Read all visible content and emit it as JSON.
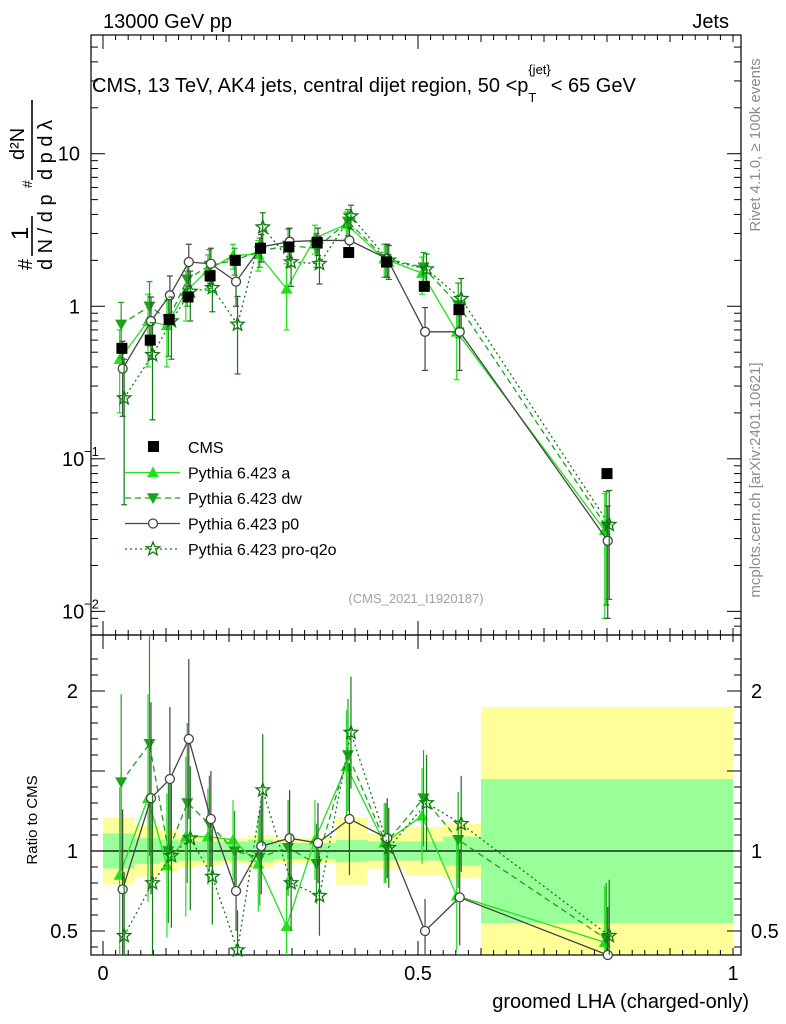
{
  "header": {
    "energy_label": "13000 GeV pp",
    "category_label": "Jets"
  },
  "side_labels": {
    "rivet": "Rivet 4.1.0, ≥ 100k events",
    "mcplots": "mcplots.cern.ch [arXiv:2401.10621]"
  },
  "chart_data": {
    "type": "line",
    "title": "CMS, 13 TeV, AK4 jets, central dijet region, 50 <p_T^{jet}< 65 GeV",
    "title_parts": {
      "main": "CMS, 13 TeV, AK4 jets, central dijet region, 50 <p",
      "sub": "T",
      "sup": "{jet}",
      "tail": "< 65 GeV"
    },
    "watermark": "(CMS_2021_I1920187)",
    "xlabel": "groomed LHA (charged-only)",
    "ylabel_top": "1/dN/dp_T · d²N/dp_T dλ",
    "ylabel_ratio": "Ratio to CMS",
    "xlim": [
      0,
      1
    ],
    "ylim_top": [
      0.007,
      60
    ],
    "ylim_ratio": [
      0.35,
      2.35
    ],
    "x_ticks": [
      "0",
      "0.5",
      "1"
    ],
    "y_ticks_top": [
      {
        "value": 10,
        "label": "10"
      },
      {
        "value": 1,
        "label": "1"
      },
      {
        "value": 0.1,
        "label": "10",
        "sup": "−1"
      },
      {
        "value": 0.01,
        "label": "10",
        "sup": "−2"
      }
    ],
    "y_ticks_ratio": [
      "0.5",
      "1",
      "2"
    ],
    "x": [
      0.03,
      0.075,
      0.105,
      0.135,
      0.17,
      0.21,
      0.25,
      0.295,
      0.34,
      0.39,
      0.45,
      0.51,
      0.565,
      0.8
    ],
    "bin_edges": [
      0,
      0.05,
      0.09,
      0.12,
      0.15,
      0.19,
      0.23,
      0.27,
      0.32,
      0.37,
      0.42,
      0.48,
      0.54,
      0.6,
      1.0
    ],
    "data": {
      "name": "CMS",
      "values": [
        0.53,
        0.6,
        0.82,
        1.15,
        1.58,
        2.0,
        2.4,
        2.45,
        2.62,
        2.25,
        1.95,
        1.35,
        0.95,
        0.08
      ],
      "band_inner": [
        0.11,
        0.08,
        0.07,
        0.06,
        0.06,
        0.06,
        0.07,
        0.05,
        0.05,
        0.07,
        0.06,
        0.06,
        0.09,
        0.45
      ],
      "band_outer": [
        0.21,
        0.16,
        0.13,
        0.1,
        0.09,
        0.08,
        0.1,
        0.08,
        0.08,
        0.21,
        0.11,
        0.15,
        0.17,
        0.9
      ]
    },
    "series": [
      {
        "name": "Pythia 6.423 a",
        "color": "#22e01e",
        "dash": "",
        "marker": "triangle-up",
        "values": [
          0.45,
          0.8,
          0.75,
          1.25,
          1.72,
          2.15,
          2.2,
          1.3,
          2.8,
          3.45,
          2.05,
          1.65,
          0.68,
          0.034
        ],
        "errors": [
          0.25,
          0.4,
          0.35,
          0.45,
          0.45,
          0.4,
          0.5,
          0.6,
          0.6,
          0.7,
          0.5,
          0.45,
          0.35,
          0.025
        ],
        "ratio": [
          0.85,
          1.33,
          0.91,
          1.09,
          1.09,
          1.07,
          0.92,
          0.53,
          1.07,
          1.53,
          1.05,
          1.22,
          0.72,
          0.43
        ],
        "ratio_err": [
          0.55,
          0.65,
          0.45,
          0.5,
          0.3,
          0.25,
          0.3,
          0.3,
          0.25,
          0.35,
          0.25,
          0.3,
          0.35,
          0.35
        ]
      },
      {
        "name": "Pythia 6.423 dw",
        "color": "#1aa31a",
        "dash": "6,4",
        "marker": "triangle-down",
        "values": [
          0.76,
          1.0,
          0.82,
          1.5,
          1.85,
          2.0,
          2.3,
          2.5,
          2.4,
          3.6,
          2.05,
          1.8,
          1.02,
          0.036
        ],
        "errors": [
          0.3,
          0.45,
          0.35,
          0.5,
          0.5,
          0.4,
          0.5,
          0.7,
          0.6,
          0.7,
          0.5,
          0.45,
          0.4,
          0.025
        ],
        "ratio": [
          1.43,
          1.67,
          1.0,
          1.3,
          1.17,
          1.0,
          0.96,
          1.02,
          0.92,
          1.6,
          1.05,
          1.33,
          1.07,
          0.45
        ],
        "ratio_err": [
          0.55,
          0.7,
          0.45,
          0.5,
          0.3,
          0.25,
          0.3,
          0.3,
          0.25,
          0.35,
          0.25,
          0.3,
          0.3,
          0.35
        ]
      },
      {
        "name": "Pythia 6.423 p0",
        "color": "#444444",
        "dash": "",
        "marker": "circle",
        "values": [
          0.39,
          0.8,
          1.18,
          1.95,
          1.9,
          1.45,
          2.45,
          2.65,
          2.7,
          2.7,
          2.05,
          0.68,
          0.68,
          0.029
        ],
        "errors": [
          0.2,
          0.35,
          0.4,
          0.6,
          0.5,
          0.45,
          0.5,
          0.6,
          0.55,
          0.6,
          0.5,
          0.3,
          0.3,
          0.02
        ],
        "ratio": [
          0.76,
          1.33,
          1.45,
          1.7,
          1.2,
          0.75,
          1.03,
          1.08,
          1.05,
          1.2,
          1.08,
          0.5,
          0.71,
          0.35
        ],
        "ratio_err": [
          0.5,
          0.6,
          0.45,
          0.5,
          0.3,
          0.25,
          0.3,
          0.3,
          0.25,
          0.35,
          0.25,
          0.2,
          0.3,
          0.3
        ]
      },
      {
        "name": "Pythia 6.423 pro-q2o",
        "color": "#0f7a0f",
        "dash": "2,3",
        "marker": "star",
        "values": [
          0.25,
          0.48,
          0.8,
          1.25,
          1.32,
          0.76,
          3.3,
          1.95,
          1.9,
          3.9,
          2.0,
          1.75,
          1.12,
          0.037
        ],
        "errors": [
          0.2,
          0.3,
          0.35,
          0.45,
          0.4,
          0.4,
          0.8,
          0.6,
          0.5,
          0.7,
          0.5,
          0.45,
          0.4,
          0.025
        ],
        "ratio": [
          0.47,
          0.8,
          0.97,
          1.08,
          0.84,
          0.38,
          1.38,
          0.8,
          0.72,
          1.74,
          1.02,
          1.3,
          1.17,
          0.47
        ],
        "ratio_err": [
          0.4,
          0.55,
          0.45,
          0.45,
          0.3,
          0.25,
          0.35,
          0.3,
          0.25,
          0.35,
          0.25,
          0.3,
          0.3,
          0.35
        ]
      }
    ]
  }
}
